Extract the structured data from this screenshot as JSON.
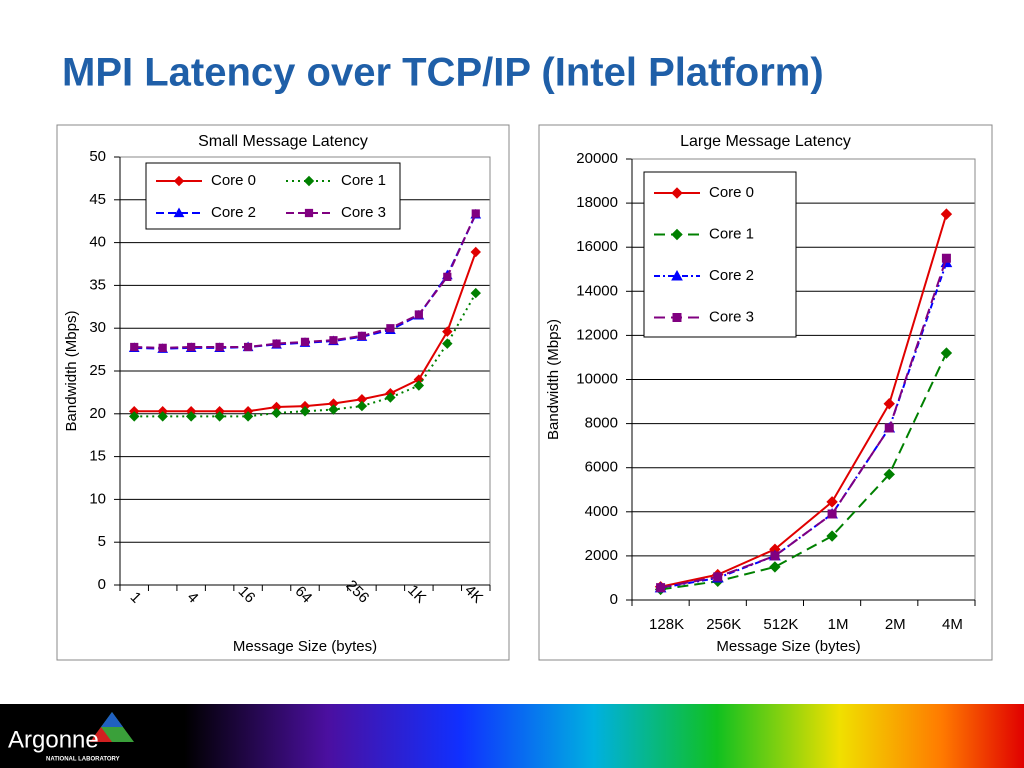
{
  "title": "MPI Latency over TCP/IP (Intel Platform)",
  "footer": {
    "logo_text": "Argonne",
    "logo_subtext": "NATIONAL LABORATORY"
  },
  "chart_data": [
    {
      "type": "line",
      "title": "Small Message Latency",
      "y_label": "Bandwidth (Mbps)",
      "x_label": "Message Size (bytes)",
      "categories": [
        "1",
        null,
        "4",
        null,
        "16",
        null,
        "64",
        null,
        "256",
        null,
        "1K",
        null,
        "4K"
      ],
      "xtick_rotation": 45,
      "ylim": [
        0,
        50
      ],
      "yticks": [
        0,
        5,
        10,
        15,
        20,
        25,
        30,
        35,
        40,
        45,
        50
      ],
      "grid": true,
      "legend": "upper left",
      "series": [
        {
          "name": "Core 0",
          "color": "#e00000",
          "line_style": "solid",
          "marker": "diamond",
          "values": [
            20.3,
            20.3,
            20.3,
            20.3,
            20.3,
            20.8,
            20.9,
            21.2,
            21.7,
            22.4,
            24,
            29.6,
            38.9
          ]
        },
        {
          "name": "Core 1",
          "color": "#008000",
          "line_style": "dotted",
          "marker": "diamond",
          "values": [
            19.7,
            19.7,
            19.7,
            19.7,
            19.7,
            20.1,
            20.3,
            20.5,
            20.9,
            21.9,
            23.3,
            28.2,
            34.1
          ]
        },
        {
          "name": "Core 2",
          "color": "#0000ff",
          "line_style": "dashed",
          "marker": "triangle",
          "values": [
            27.7,
            27.6,
            27.7,
            27.7,
            27.8,
            28.1,
            28.3,
            28.5,
            29,
            29.8,
            31.5,
            36.2,
            43.3
          ]
        },
        {
          "name": "Core 3",
          "color": "#800080",
          "line_style": "dashed",
          "marker": "square",
          "values": [
            27.8,
            27.7,
            27.8,
            27.8,
            27.8,
            28.2,
            28.4,
            28.6,
            29.1,
            30,
            31.6,
            36,
            43.4
          ]
        }
      ]
    },
    {
      "type": "line",
      "title": "Large Message Latency",
      "y_label": "Bandwidth (Mbps)",
      "x_label": "Message Size (bytes)",
      "categories": [
        "128K",
        "256K",
        "512K",
        "1M",
        "2M",
        "4M"
      ],
      "ylim": [
        0,
        20000
      ],
      "yticks": [
        0,
        2000,
        4000,
        6000,
        8000,
        10000,
        12000,
        14000,
        16000,
        18000,
        20000
      ],
      "grid": true,
      "legend": "upper right",
      "series": [
        {
          "name": "Core 0",
          "color": "#e00000",
          "line_style": "solid",
          "marker": "diamond",
          "values": [
            600,
            1150,
            2300,
            4450,
            8900,
            17500
          ]
        },
        {
          "name": "Core 1",
          "color": "#008000",
          "line_style": "longdash",
          "marker": "diamond",
          "values": [
            480,
            850,
            1500,
            2900,
            5700,
            11200
          ]
        },
        {
          "name": "Core 2",
          "color": "#0000ff",
          "line_style": "dashdot",
          "marker": "triangle",
          "values": [
            550,
            1000,
            2000,
            3900,
            7800,
            15300
          ]
        },
        {
          "name": "Core 3",
          "color": "#800080",
          "line_style": "longdash",
          "marker": "square",
          "values": [
            560,
            1050,
            2000,
            3900,
            7800,
            15500
          ]
        }
      ]
    }
  ]
}
